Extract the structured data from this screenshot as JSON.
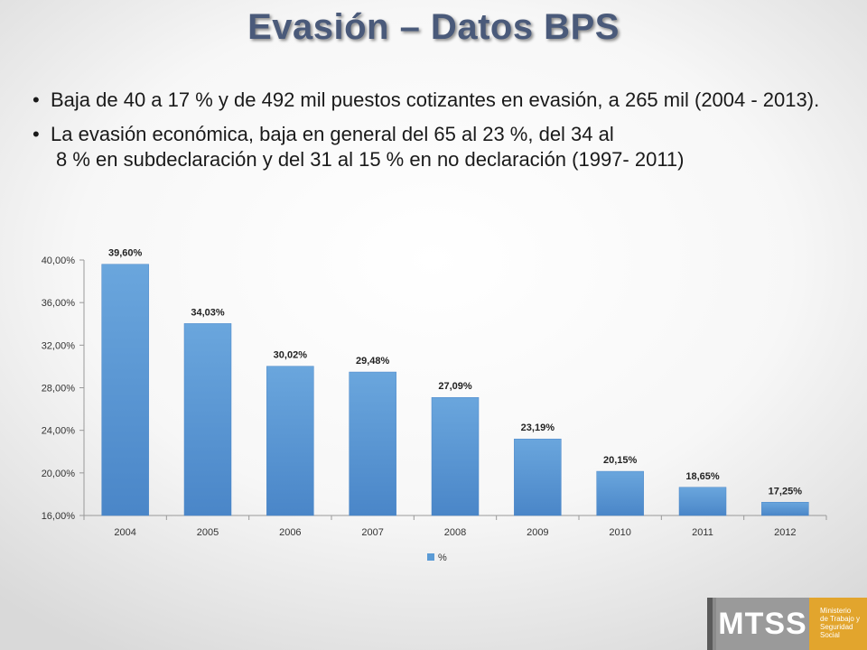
{
  "slide": {
    "title": "Evasión – Datos BPS",
    "bullets": [
      "Baja de 40 a 17 % y de 492 mil puestos cotizantes en evasión, a 265 mil (2004 - 2013).",
      "La evasión económica, baja en general del 65 al 23 %, del 34 al",
      "8 % en subdeclaración y del 31 al 15 % en no declaración (1997- 2011)"
    ]
  },
  "chart_data": {
    "type": "bar",
    "categories": [
      "2004",
      "2005",
      "2006",
      "2007",
      "2008",
      "2009",
      "2010",
      "2011",
      "2012"
    ],
    "series": [
      {
        "name": "%",
        "values": [
          39.6,
          34.03,
          30.02,
          29.48,
          27.09,
          23.19,
          20.15,
          18.65,
          17.25
        ],
        "labels": [
          "39,60%",
          "34,03%",
          "30,02%",
          "29,48%",
          "27,09%",
          "23,19%",
          "20,15%",
          "18,65%",
          "17,25%"
        ],
        "color": "#5b9bd5"
      }
    ],
    "ylim": [
      16,
      40
    ],
    "yticks": [
      16,
      20,
      24,
      28,
      32,
      36,
      40
    ],
    "ytick_labels": [
      "16,00%",
      "20,00%",
      "24,00%",
      "28,00%",
      "32,00%",
      "36,00%",
      "40,00%"
    ],
    "grid": false,
    "legend_position": "bottom"
  },
  "logo": {
    "acronym": "MTSS",
    "ministry_lines": [
      "Ministerio",
      "de Trabajo y",
      "Seguridad",
      "Social"
    ],
    "colors": {
      "grey": "#9a9a9a",
      "gold": "#e2a52d"
    }
  }
}
